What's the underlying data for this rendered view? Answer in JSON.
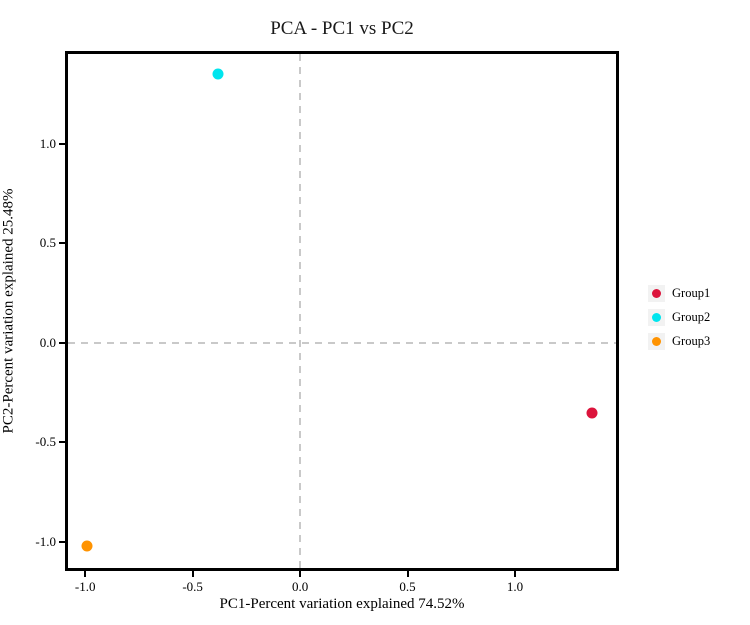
{
  "chart_data": {
    "type": "scatter",
    "title": "PCA - PC1 vs PC2",
    "xlabel": "PC1-Percent variation explained 74.52%",
    "ylabel": "PC2-Percent variation explained 25.48%",
    "xlim": [
      -1.08,
      1.47
    ],
    "ylim": [
      -1.13,
      1.45
    ],
    "xticks": [
      -1.0,
      -0.5,
      0.0,
      0.5,
      1.0
    ],
    "yticks": [
      -1.0,
      -0.5,
      0.0,
      0.5,
      1.0
    ],
    "tick_decimals": 1,
    "grid": false,
    "legend_position": "right",
    "reference_lines": {
      "x": 0,
      "y": 0,
      "style": "dashed",
      "color": "#C9C9C9"
    },
    "series": [
      {
        "name": "Group1",
        "color": "#DC143C",
        "points": [
          {
            "x": 1.36,
            "y": -0.35
          }
        ]
      },
      {
        "name": "Group2",
        "color": "#00E5EE",
        "points": [
          {
            "x": -0.38,
            "y": 1.35
          }
        ]
      },
      {
        "name": "Group3",
        "color": "#FF9300",
        "points": [
          {
            "x": -0.99,
            "y": -1.02
          }
        ]
      }
    ],
    "colors": {
      "plot_border": "#000000",
      "background": "#FFFFFF",
      "legend_key_bg": "#F2F2F2",
      "reference_line": "#C9C9C9",
      "text": "#000000"
    }
  }
}
